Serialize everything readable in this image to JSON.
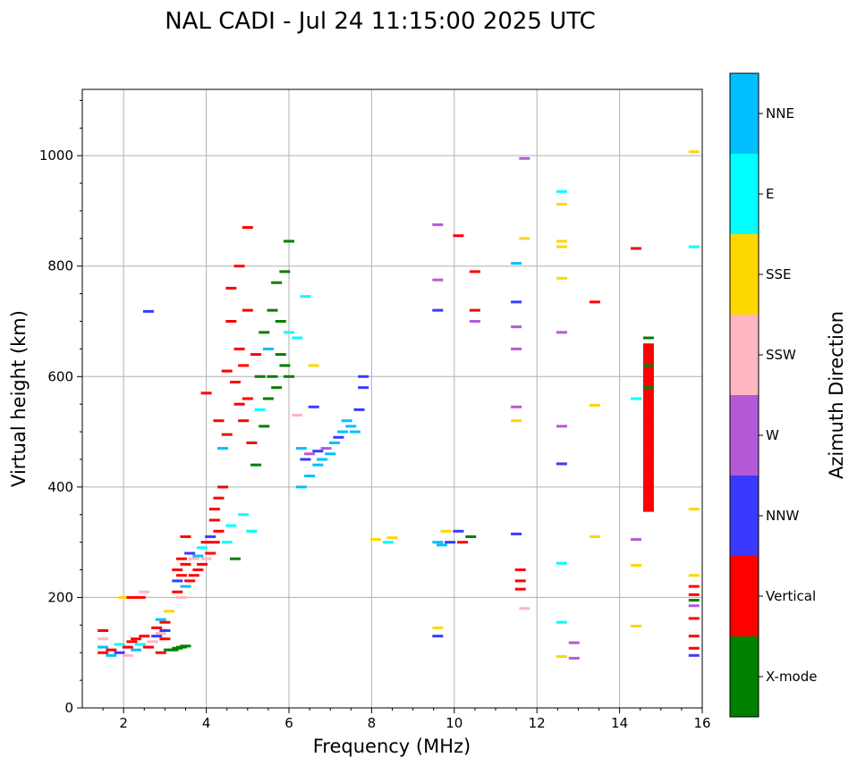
{
  "chart_data": {
    "type": "scatter",
    "title": "NAL CADI - Jul 24 11:15:00 2025 UTC",
    "xlabel": "Frequency (MHz)",
    "ylabel": "Virtual height (km)",
    "xlim": [
      1,
      16
    ],
    "ylim": [
      0,
      1120
    ],
    "grid": true,
    "x_ticks": [
      2,
      4,
      6,
      8,
      10,
      12,
      14,
      16
    ],
    "y_ticks": [
      0,
      200,
      400,
      600,
      800,
      1000
    ],
    "colorbar": {
      "title": "Azimuth Direction",
      "categories": [
        {
          "name": "X-mode",
          "color": "#008000"
        },
        {
          "name": "Vertical",
          "color": "#ff0000"
        },
        {
          "name": "NNW",
          "color": "#3a3aff"
        },
        {
          "name": "W",
          "color": "#b45ad6"
        },
        {
          "name": "SSW",
          "color": "#ffb6c1"
        },
        {
          "name": "SSE",
          "color": "#ffd700"
        },
        {
          "name": "E",
          "color": "#00ffff"
        },
        {
          "name": "NNE",
          "color": "#00bfff"
        }
      ]
    },
    "points": [
      {
        "x": 1.5,
        "y": 100,
        "c": "Vertical"
      },
      {
        "x": 1.5,
        "y": 110,
        "c": "NNE"
      },
      {
        "x": 1.5,
        "y": 125,
        "c": "SSW"
      },
      {
        "x": 1.5,
        "y": 140,
        "c": "Vertical"
      },
      {
        "x": 1.7,
        "y": 95,
        "c": "NNE"
      },
      {
        "x": 1.7,
        "y": 105,
        "c": "Vertical"
      },
      {
        "x": 1.9,
        "y": 100,
        "c": "NNW"
      },
      {
        "x": 1.9,
        "y": 115,
        "c": "E"
      },
      {
        "x": 2.0,
        "y": 200,
        "c": "SSE"
      },
      {
        "x": 2.1,
        "y": 110,
        "c": "Vertical"
      },
      {
        "x": 2.1,
        "y": 95,
        "c": "SSW"
      },
      {
        "x": 2.2,
        "y": 120,
        "c": "Vertical"
      },
      {
        "x": 2.2,
        "y": 200,
        "c": "Vertical"
      },
      {
        "x": 2.3,
        "y": 105,
        "c": "NNE"
      },
      {
        "x": 2.3,
        "y": 125,
        "c": "Vertical"
      },
      {
        "x": 2.4,
        "y": 200,
        "c": "Vertical"
      },
      {
        "x": 2.4,
        "y": 115,
        "c": "E"
      },
      {
        "x": 2.5,
        "y": 130,
        "c": "Vertical"
      },
      {
        "x": 2.5,
        "y": 210,
        "c": "SSW"
      },
      {
        "x": 2.6,
        "y": 110,
        "c": "Vertical"
      },
      {
        "x": 2.6,
        "y": 718,
        "c": "NNW"
      },
      {
        "x": 2.7,
        "y": 120,
        "c": "SSW"
      },
      {
        "x": 2.8,
        "y": 130,
        "c": "NNW"
      },
      {
        "x": 2.8,
        "y": 145,
        "c": "Vertical"
      },
      {
        "x": 2.9,
        "y": 100,
        "c": "Vertical"
      },
      {
        "x": 2.9,
        "y": 135,
        "c": "SSW"
      },
      {
        "x": 2.9,
        "y": 160,
        "c": "NNE"
      },
      {
        "x": 3.0,
        "y": 125,
        "c": "Vertical"
      },
      {
        "x": 3.0,
        "y": 140,
        "c": "NNW"
      },
      {
        "x": 3.0,
        "y": 155,
        "c": "Vertical"
      },
      {
        "x": 3.1,
        "y": 105,
        "c": "X-mode"
      },
      {
        "x": 3.1,
        "y": 175,
        "c": "SSE"
      },
      {
        "x": 3.2,
        "y": 105,
        "c": "X-mode"
      },
      {
        "x": 3.3,
        "y": 108,
        "c": "X-mode"
      },
      {
        "x": 3.4,
        "y": 110,
        "c": "X-mode"
      },
      {
        "x": 3.5,
        "y": 112,
        "c": "X-mode"
      },
      {
        "x": 3.3,
        "y": 210,
        "c": "Vertical"
      },
      {
        "x": 3.3,
        "y": 230,
        "c": "NNW"
      },
      {
        "x": 3.3,
        "y": 250,
        "c": "Vertical"
      },
      {
        "x": 3.4,
        "y": 200,
        "c": "SSW"
      },
      {
        "x": 3.4,
        "y": 240,
        "c": "Vertical"
      },
      {
        "x": 3.4,
        "y": 270,
        "c": "Vertical"
      },
      {
        "x": 3.5,
        "y": 220,
        "c": "NNE"
      },
      {
        "x": 3.5,
        "y": 260,
        "c": "Vertical"
      },
      {
        "x": 3.5,
        "y": 310,
        "c": "Vertical"
      },
      {
        "x": 3.6,
        "y": 230,
        "c": "Vertical"
      },
      {
        "x": 3.6,
        "y": 280,
        "c": "NNW"
      },
      {
        "x": 3.7,
        "y": 240,
        "c": "Vertical"
      },
      {
        "x": 3.7,
        "y": 270,
        "c": "SSW"
      },
      {
        "x": 3.8,
        "y": 250,
        "c": "Vertical"
      },
      {
        "x": 3.8,
        "y": 275,
        "c": "NNE"
      },
      {
        "x": 3.9,
        "y": 260,
        "c": "Vertical"
      },
      {
        "x": 3.9,
        "y": 290,
        "c": "E"
      },
      {
        "x": 4.0,
        "y": 270,
        "c": "SSW"
      },
      {
        "x": 4.0,
        "y": 300,
        "c": "Vertical"
      },
      {
        "x": 4.0,
        "y": 570,
        "c": "Vertical"
      },
      {
        "x": 4.1,
        "y": 280,
        "c": "Vertical"
      },
      {
        "x": 4.1,
        "y": 310,
        "c": "NNW"
      },
      {
        "x": 4.2,
        "y": 300,
        "c": "Vertical"
      },
      {
        "x": 4.2,
        "y": 340,
        "c": "Vertical"
      },
      {
        "x": 4.2,
        "y": 360,
        "c": "Vertical"
      },
      {
        "x": 4.3,
        "y": 320,
        "c": "Vertical"
      },
      {
        "x": 4.3,
        "y": 380,
        "c": "Vertical"
      },
      {
        "x": 4.3,
        "y": 520,
        "c": "Vertical"
      },
      {
        "x": 4.4,
        "y": 400,
        "c": "Vertical"
      },
      {
        "x": 4.4,
        "y": 470,
        "c": "NNE"
      },
      {
        "x": 4.5,
        "y": 300,
        "c": "E"
      },
      {
        "x": 4.5,
        "y": 495,
        "c": "Vertical"
      },
      {
        "x": 4.5,
        "y": 610,
        "c": "Vertical"
      },
      {
        "x": 4.6,
        "y": 330,
        "c": "E"
      },
      {
        "x": 4.6,
        "y": 700,
        "c": "Vertical"
      },
      {
        "x": 4.6,
        "y": 760,
        "c": "Vertical"
      },
      {
        "x": 4.7,
        "y": 590,
        "c": "Vertical"
      },
      {
        "x": 4.7,
        "y": 270,
        "c": "X-mode"
      },
      {
        "x": 4.8,
        "y": 550,
        "c": "Vertical"
      },
      {
        "x": 4.8,
        "y": 650,
        "c": "Vertical"
      },
      {
        "x": 4.8,
        "y": 800,
        "c": "Vertical"
      },
      {
        "x": 4.9,
        "y": 520,
        "c": "Vertical"
      },
      {
        "x": 4.9,
        "y": 620,
        "c": "Vertical"
      },
      {
        "x": 4.9,
        "y": 350,
        "c": "E"
      },
      {
        "x": 5.0,
        "y": 560,
        "c": "Vertical"
      },
      {
        "x": 5.0,
        "y": 720,
        "c": "Vertical"
      },
      {
        "x": 5.0,
        "y": 870,
        "c": "Vertical"
      },
      {
        "x": 5.1,
        "y": 480,
        "c": "Vertical"
      },
      {
        "x": 5.1,
        "y": 320,
        "c": "E"
      },
      {
        "x": 5.2,
        "y": 640,
        "c": "Vertical"
      },
      {
        "x": 5.2,
        "y": 440,
        "c": "X-mode"
      },
      {
        "x": 5.3,
        "y": 600,
        "c": "X-mode"
      },
      {
        "x": 5.3,
        "y": 540,
        "c": "E"
      },
      {
        "x": 5.4,
        "y": 510,
        "c": "X-mode"
      },
      {
        "x": 5.4,
        "y": 680,
        "c": "X-mode"
      },
      {
        "x": 5.5,
        "y": 560,
        "c": "X-mode"
      },
      {
        "x": 5.5,
        "y": 650,
        "c": "NNE"
      },
      {
        "x": 5.6,
        "y": 600,
        "c": "X-mode"
      },
      {
        "x": 5.6,
        "y": 720,
        "c": "X-mode"
      },
      {
        "x": 5.7,
        "y": 580,
        "c": "X-mode"
      },
      {
        "x": 5.7,
        "y": 770,
        "c": "X-mode"
      },
      {
        "x": 5.8,
        "y": 640,
        "c": "X-mode"
      },
      {
        "x": 5.8,
        "y": 700,
        "c": "X-mode"
      },
      {
        "x": 5.9,
        "y": 620,
        "c": "X-mode"
      },
      {
        "x": 5.9,
        "y": 790,
        "c": "X-mode"
      },
      {
        "x": 6.0,
        "y": 680,
        "c": "E"
      },
      {
        "x": 6.0,
        "y": 845,
        "c": "X-mode"
      },
      {
        "x": 6.0,
        "y": 600,
        "c": "X-mode"
      },
      {
        "x": 6.2,
        "y": 530,
        "c": "SSW"
      },
      {
        "x": 6.2,
        "y": 670,
        "c": "E"
      },
      {
        "x": 6.3,
        "y": 470,
        "c": "NNE"
      },
      {
        "x": 6.3,
        "y": 400,
        "c": "NNE"
      },
      {
        "x": 6.4,
        "y": 745,
        "c": "E"
      },
      {
        "x": 6.4,
        "y": 450,
        "c": "NNW"
      },
      {
        "x": 6.5,
        "y": 420,
        "c": "NNE"
      },
      {
        "x": 6.5,
        "y": 460,
        "c": "W"
      },
      {
        "x": 6.6,
        "y": 545,
        "c": "NNW"
      },
      {
        "x": 6.6,
        "y": 620,
        "c": "SSE"
      },
      {
        "x": 6.7,
        "y": 440,
        "c": "NNE"
      },
      {
        "x": 6.7,
        "y": 465,
        "c": "NNW"
      },
      {
        "x": 6.8,
        "y": 450,
        "c": "NNE"
      },
      {
        "x": 6.9,
        "y": 470,
        "c": "W"
      },
      {
        "x": 7.0,
        "y": 460,
        "c": "NNE"
      },
      {
        "x": 7.1,
        "y": 480,
        "c": "NNE"
      },
      {
        "x": 7.2,
        "y": 490,
        "c": "NNW"
      },
      {
        "x": 7.3,
        "y": 500,
        "c": "NNE"
      },
      {
        "x": 7.4,
        "y": 520,
        "c": "NNE"
      },
      {
        "x": 7.5,
        "y": 510,
        "c": "NNE"
      },
      {
        "x": 7.6,
        "y": 500,
        "c": "NNE"
      },
      {
        "x": 7.7,
        "y": 540,
        "c": "NNW"
      },
      {
        "x": 7.8,
        "y": 580,
        "c": "NNW"
      },
      {
        "x": 7.8,
        "y": 600,
        "c": "NNW"
      },
      {
        "x": 8.1,
        "y": 305,
        "c": "SSE"
      },
      {
        "x": 8.4,
        "y": 300,
        "c": "E"
      },
      {
        "x": 8.5,
        "y": 308,
        "c": "SSE"
      },
      {
        "x": 9.6,
        "y": 300,
        "c": "NNE"
      },
      {
        "x": 9.7,
        "y": 295,
        "c": "NNE"
      },
      {
        "x": 9.8,
        "y": 320,
        "c": "SSE"
      },
      {
        "x": 9.9,
        "y": 300,
        "c": "NNW"
      },
      {
        "x": 10.1,
        "y": 320,
        "c": "NNW"
      },
      {
        "x": 10.2,
        "y": 300,
        "c": "Vertical"
      },
      {
        "x": 10.4,
        "y": 310,
        "c": "X-mode"
      },
      {
        "x": 9.6,
        "y": 875,
        "c": "W"
      },
      {
        "x": 9.6,
        "y": 775,
        "c": "W"
      },
      {
        "x": 9.6,
        "y": 720,
        "c": "NNW"
      },
      {
        "x": 9.6,
        "y": 130,
        "c": "NNW"
      },
      {
        "x": 9.6,
        "y": 145,
        "c": "SSE"
      },
      {
        "x": 10.1,
        "y": 855,
        "c": "Vertical"
      },
      {
        "x": 10.5,
        "y": 790,
        "c": "Vertical"
      },
      {
        "x": 10.5,
        "y": 720,
        "c": "Vertical"
      },
      {
        "x": 10.5,
        "y": 700,
        "c": "W"
      },
      {
        "x": 11.5,
        "y": 805,
        "c": "NNE"
      },
      {
        "x": 11.5,
        "y": 735,
        "c": "NNW"
      },
      {
        "x": 11.5,
        "y": 690,
        "c": "W"
      },
      {
        "x": 11.5,
        "y": 650,
        "c": "W"
      },
      {
        "x": 11.5,
        "y": 545,
        "c": "W"
      },
      {
        "x": 11.5,
        "y": 520,
        "c": "SSE"
      },
      {
        "x": 11.5,
        "y": 315,
        "c": "NNW"
      },
      {
        "x": 11.7,
        "y": 995,
        "c": "W"
      },
      {
        "x": 11.7,
        "y": 850,
        "c": "SSE"
      },
      {
        "x": 11.6,
        "y": 250,
        "c": "Vertical"
      },
      {
        "x": 11.6,
        "y": 230,
        "c": "Vertical"
      },
      {
        "x": 11.6,
        "y": 215,
        "c": "Vertical"
      },
      {
        "x": 11.7,
        "y": 180,
        "c": "SSW"
      },
      {
        "x": 12.6,
        "y": 935,
        "c": "E"
      },
      {
        "x": 12.6,
        "y": 912,
        "c": "SSE"
      },
      {
        "x": 12.6,
        "y": 845,
        "c": "SSE"
      },
      {
        "x": 12.6,
        "y": 835,
        "c": "SSE"
      },
      {
        "x": 12.6,
        "y": 778,
        "c": "SSE"
      },
      {
        "x": 12.6,
        "y": 680,
        "c": "W"
      },
      {
        "x": 12.6,
        "y": 510,
        "c": "W"
      },
      {
        "x": 12.6,
        "y": 442,
        "c": "NNW"
      },
      {
        "x": 12.6,
        "y": 262,
        "c": "E"
      },
      {
        "x": 12.6,
        "y": 155,
        "c": "E"
      },
      {
        "x": 12.6,
        "y": 93,
        "c": "SSE"
      },
      {
        "x": 12.9,
        "y": 118,
        "c": "W"
      },
      {
        "x": 12.9,
        "y": 90,
        "c": "W"
      },
      {
        "x": 13.4,
        "y": 735,
        "c": "Vertical"
      },
      {
        "x": 13.4,
        "y": 548,
        "c": "SSE"
      },
      {
        "x": 13.4,
        "y": 310,
        "c": "SSE"
      },
      {
        "x": 14.4,
        "y": 832,
        "c": "Vertical"
      },
      {
        "x": 14.4,
        "y": 560,
        "c": "E"
      },
      {
        "x": 14.4,
        "y": 305,
        "c": "W"
      },
      {
        "x": 14.4,
        "y": 258,
        "c": "SSE"
      },
      {
        "x": 14.4,
        "y": 148,
        "c": "SSE"
      },
      {
        "x": 14.7,
        "y": 670,
        "c": "X-mode"
      },
      {
        "x": 14.7,
        "y": 640,
        "c": "Vertical"
      },
      {
        "x": 14.7,
        "y": 620,
        "c": "X-mode"
      },
      {
        "x": 14.7,
        "y": 600,
        "c": "Vertical"
      },
      {
        "x": 14.7,
        "y": 580,
        "c": "X-mode"
      },
      {
        "x": 14.7,
        "y": 540,
        "c": "Vertical"
      },
      {
        "x": 14.7,
        "y": 500,
        "c": "Vertical"
      },
      {
        "x": 14.7,
        "y": 460,
        "c": "Vertical"
      },
      {
        "x": 14.7,
        "y": 420,
        "c": "Vertical"
      },
      {
        "x": 14.7,
        "y": 380,
        "c": "Vertical"
      },
      {
        "x": 14.7,
        "y": 360,
        "c": "Vertical"
      },
      {
        "x": 15.8,
        "y": 1007,
        "c": "SSE"
      },
      {
        "x": 15.8,
        "y": 835,
        "c": "E"
      },
      {
        "x": 15.8,
        "y": 360,
        "c": "SSE"
      },
      {
        "x": 15.8,
        "y": 240,
        "c": "SSE"
      },
      {
        "x": 15.8,
        "y": 220,
        "c": "Vertical"
      },
      {
        "x": 15.8,
        "y": 205,
        "c": "Vertical"
      },
      {
        "x": 15.8,
        "y": 195,
        "c": "X-mode"
      },
      {
        "x": 15.8,
        "y": 185,
        "c": "W"
      },
      {
        "x": 15.8,
        "y": 162,
        "c": "Vertical"
      },
      {
        "x": 15.8,
        "y": 130,
        "c": "Vertical"
      },
      {
        "x": 15.8,
        "y": 108,
        "c": "Vertical"
      },
      {
        "x": 15.8,
        "y": 95,
        "c": "NNW"
      }
    ],
    "bars": [
      {
        "x": 14.7,
        "y0": 355,
        "y1": 660,
        "c": "Vertical"
      }
    ]
  }
}
